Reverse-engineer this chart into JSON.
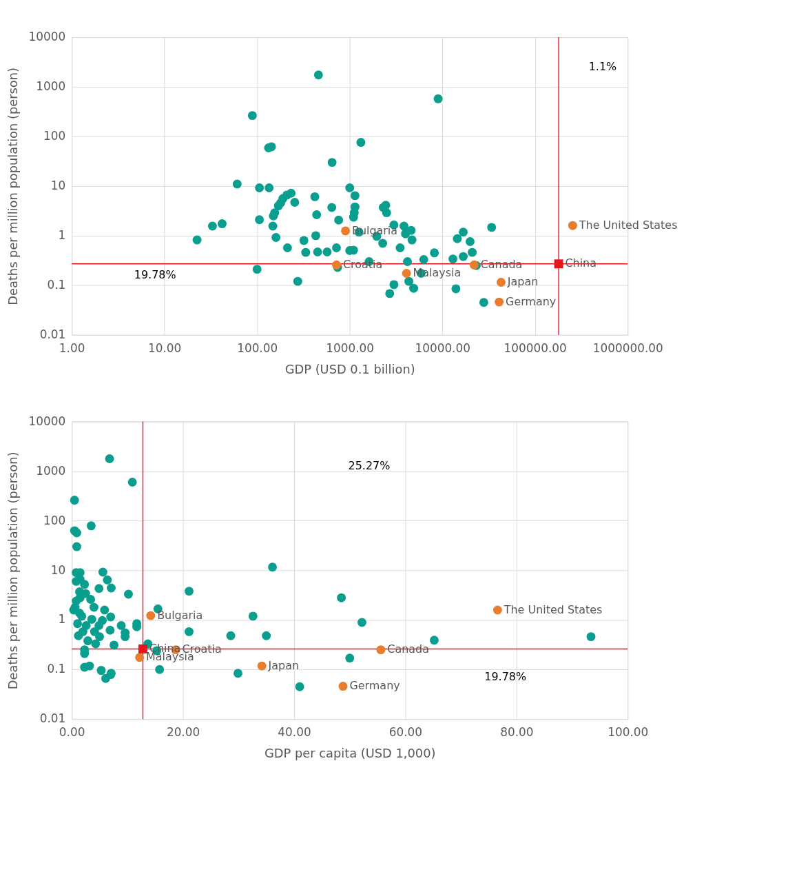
{
  "chart_data": [
    {
      "type": "scatter",
      "xlabel": "GDP (USD 0.1 billion)",
      "ylabel": "Deaths per million population (person)",
      "log": "xy",
      "grid": true,
      "legend": false,
      "marker": "circle",
      "xlim": [
        1,
        1000000
      ],
      "ylim": [
        0.01,
        10000
      ],
      "xticks": [
        {
          "value": 1,
          "label": "1.00"
        },
        {
          "value": 10,
          "label": "10.00"
        },
        {
          "value": 100,
          "label": "100.00"
        },
        {
          "value": 1000,
          "label": "1000.00"
        },
        {
          "value": 10000,
          "label": "10000.00"
        },
        {
          "value": 100000,
          "label": "100000.00"
        },
        {
          "value": 1000000,
          "label": "1000000.00"
        }
      ],
      "yticks": [
        0.01,
        0.1,
        1,
        10,
        100,
        1000,
        10000
      ],
      "ref_lines": [
        {
          "axis": "x",
          "value": 180000,
          "color": "#e8141c"
        },
        {
          "axis": "y",
          "value": 0.27,
          "color": "#e8141c"
        }
      ],
      "annotations": [
        "1.1%",
        "19.78%"
      ],
      "series": [
        {
          "color": "#0a9e8f",
          "x": [
            460,
            9000,
            89,
            133,
            143,
            1320,
            645,
            61,
            106,
            135,
            1000,
            1140,
            420,
            233,
            210,
            190,
            180,
            255,
            170,
            155,
            150,
            1140,
            1120,
            1100,
            640,
            440,
            2300,
            2450,
            2500,
            760,
            106,
            33,
            42,
            22.5,
            148,
            160,
            213,
            320,
            335,
            430,
            450,
            570,
            720,
            740,
            1000,
            1100,
            1260,
            1620,
            1960,
            2270,
            3000,
            3500,
            3850,
            4000,
            4600,
            4700,
            4200,
            4350,
            3000,
            2700,
            4900,
            5900,
            6300,
            8200,
            13000,
            14500,
            16800,
            16800,
            19900,
            21000,
            23200,
            14000,
            28000,
            34000,
            100,
            275
          ],
          "values": [
            1740,
            575,
            264,
            59,
            62,
            76,
            30,
            11,
            9.2,
            9.2,
            9.2,
            6.4,
            6.1,
            7.2,
            6.6,
            5.6,
            4.6,
            4.7,
            4.0,
            2.9,
            2.5,
            3.8,
            2.9,
            2.36,
            3.7,
            2.64,
            3.7,
            4.1,
            2.9,
            2.06,
            2.1,
            1.56,
            1.74,
            0.82,
            1.56,
            0.92,
            0.57,
            0.8,
            0.46,
            1.0,
            0.47,
            0.47,
            0.57,
            0.23,
            0.5,
            0.51,
            1.18,
            0.3,
            0.97,
            0.7,
            1.65,
            0.57,
            1.56,
            1.09,
            1.28,
            0.82,
            0.3,
            0.12,
            0.103,
            0.068,
            0.087,
            0.174,
            0.33,
            0.45,
            0.34,
            0.87,
            1.18,
            0.38,
            0.76,
            0.46,
            0.25,
            0.085,
            0.045,
            1.47,
            0.21,
            0.12
          ]
        },
        {
          "color": "#e87d2e",
          "x": [
            900,
            720,
            4100,
            22000,
            43000,
            41000,
            255000
          ],
          "values": [
            1.25,
            0.257,
            0.174,
            0.257,
            0.115,
            0.046,
            1.6
          ],
          "value_labels": [
            "Bulgaria",
            "Croatia",
            "Malaysia",
            "Canada",
            "Japan",
            "Germany",
            "The United States"
          ]
        },
        {
          "color": "#e8141c",
          "marker": "square",
          "x": [
            180000
          ],
          "values": [
            0.27
          ],
          "value_labels": [
            "China"
          ]
        }
      ]
    },
    {
      "type": "scatter",
      "xlabel": "GDP per capita (USD 1,000)",
      "ylabel": "Deaths per million population (person)",
      "log": "y",
      "grid": true,
      "legend": false,
      "marker": "circle",
      "xlim": [
        0,
        100
      ],
      "ylim": [
        0.01,
        10000
      ],
      "xticks": [
        {
          "value": 0,
          "label": "0.00"
        },
        {
          "value": 20,
          "label": "20.00"
        },
        {
          "value": 40,
          "label": "40.00"
        },
        {
          "value": 60,
          "label": "60.00"
        },
        {
          "value": 80,
          "label": "80.00"
        },
        {
          "value": 100,
          "label": "100.00"
        }
      ],
      "yticks": [
        0.01,
        0.1,
        1,
        10,
        100,
        1000,
        10000
      ],
      "ref_lines": [
        {
          "axis": "x",
          "value": 12.8,
          "color": "#e8141c"
        },
        {
          "axis": "y",
          "value": 0.26,
          "color": "#e8141c"
        }
      ],
      "annotations": [
        "25.27%",
        "19.78%"
      ],
      "series": [
        {
          "color": "#0a9e8f",
          "x": [
            6.8,
            10.9,
            0.5,
            0.5,
            0.9,
            0.9,
            3.5,
            0.8,
            1.5,
            5.6,
            6.4,
            7.1,
            4.9,
            0.8,
            1.5,
            2.3,
            1.4,
            10.2,
            21.1,
            36.1,
            48.5,
            15.5,
            32.6,
            52.2,
            21.1,
            28.6,
            35.0,
            65.2,
            93.4,
            50,
            29.9,
            41,
            15.8,
            13.7,
            15.3,
            11.7,
            11.7,
            9.6,
            9.6,
            8.9,
            7.6,
            7.0,
            5.9,
            6.9,
            5.0,
            7.0,
            7.1,
            6.1,
            5.3,
            2.3,
            3.2,
            2.3,
            2.3,
            0.35,
            0.8,
            1.5,
            2.5,
            3.4,
            4.0,
            1.05,
            1.8,
            2.6,
            3.6,
            1.2,
            2.9,
            4.1,
            4.9,
            2.0,
            0.6,
            5.5,
            4.3,
            1.4
          ],
          "values": [
            1780,
            600,
            260,
            63,
            57,
            30,
            79,
            9,
            9,
            9.2,
            6.4,
            4.4,
            4.3,
            6,
            6.6,
            5.2,
            3.7,
            3.3,
            3.8,
            11.6,
            2.8,
            1.67,
            1.19,
            0.89,
            0.58,
            0.48,
            0.48,
            0.39,
            0.46,
            0.17,
            0.084,
            0.045,
            0.1,
            0.33,
            0.24,
            0.84,
            0.73,
            0.55,
            0.46,
            0.77,
            0.31,
            1.15,
            1.58,
            0.62,
            0.46,
            0.079,
            0.084,
            0.066,
            0.096,
            0.111,
            0.118,
            0.21,
            0.25,
            1.58,
            2.4,
            2.8,
            3.4,
            2.6,
            1.8,
            0.84,
            1.19,
            0.77,
            1.03,
            0.48,
            0.38,
            0.58,
            0.77,
            0.58,
            1.8,
            0.97,
            0.33,
            1.37
          ]
        },
        {
          "color": "#e87d2e",
          "x": [
            14.2,
            12.2,
            18.7,
            34.2,
            48.8,
            55.6,
            76.6
          ],
          "values": [
            1.22,
            0.175,
            0.25,
            0.118,
            0.046,
            0.25,
            1.58
          ],
          "value_labels": [
            "Bulgaria",
            "Malaysia",
            "Croatia",
            "Japan",
            "Germany",
            "Canada",
            "The United States"
          ]
        },
        {
          "color": "#e8141c",
          "marker": "square",
          "x": [
            12.8
          ],
          "values": [
            0.26
          ],
          "value_labels": [
            "China"
          ]
        }
      ]
    }
  ]
}
